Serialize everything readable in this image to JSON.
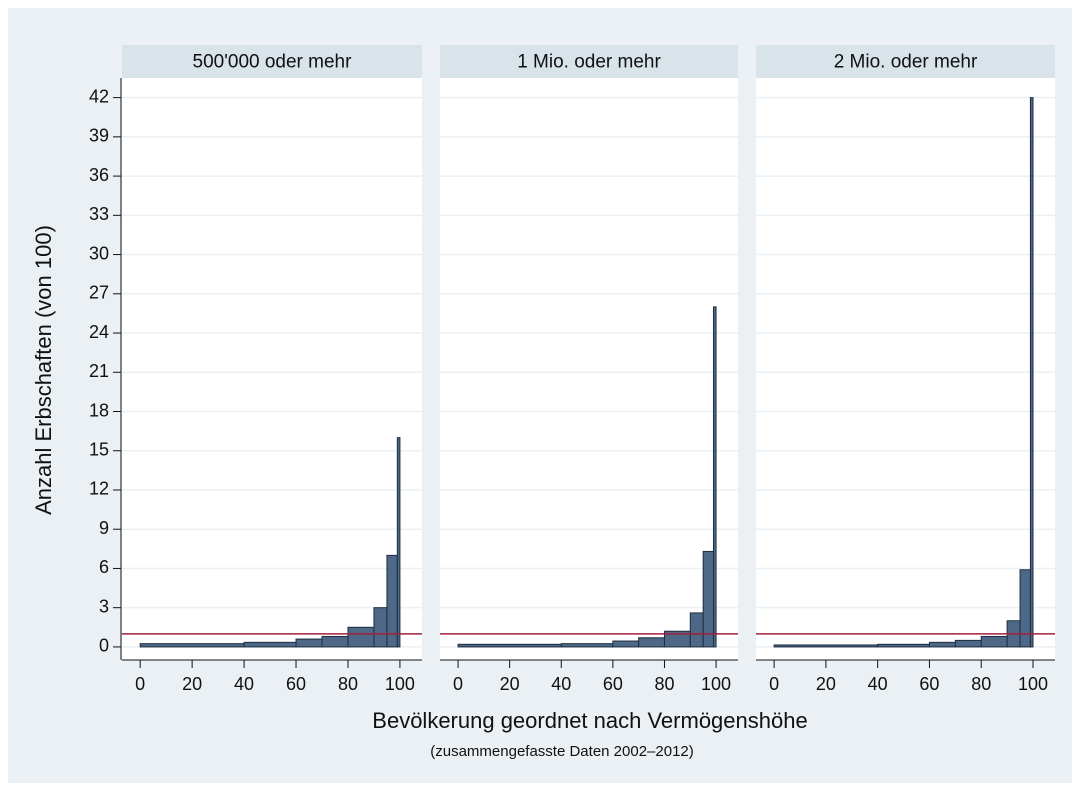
{
  "chart_data": [
    {
      "type": "histogram",
      "title": "500'000 oder mehr",
      "bins": [
        0,
        40,
        60,
        70,
        80,
        90,
        95,
        99,
        100
      ],
      "values": [
        0.25,
        0.35,
        0.6,
        0.8,
        1.5,
        3,
        7,
        16
      ],
      "color": "#4d6987",
      "edge_color": "#1e2d3d",
      "xlim": [
        -7,
        108.5
      ],
      "xticks": [
        0,
        20,
        40,
        60,
        80,
        100
      ],
      "ylim": [
        -1,
        43.5
      ],
      "yticks": [
        0,
        3,
        6,
        9,
        12,
        15,
        18,
        21,
        24,
        27,
        30,
        33,
        36,
        39,
        42
      ],
      "grid": true,
      "hline": 1,
      "hline_color": "#a3203e"
    },
    {
      "type": "histogram",
      "title": "1 Mio. oder mehr",
      "bins": [
        0,
        40,
        60,
        70,
        80,
        90,
        95,
        99,
        100
      ],
      "values": [
        0.2,
        0.25,
        0.45,
        0.7,
        1.2,
        2.6,
        7.3,
        26
      ],
      "color": "#4d6987",
      "edge_color": "#1e2d3d",
      "xlim": [
        -7,
        108.5
      ],
      "xticks": [
        0,
        20,
        40,
        60,
        80,
        100
      ],
      "ylim": [
        -1,
        43.5
      ],
      "yticks": [
        0,
        3,
        6,
        9,
        12,
        15,
        18,
        21,
        24,
        27,
        30,
        33,
        36,
        39,
        42
      ],
      "grid": true,
      "hline": 1,
      "hline_color": "#a3203e"
    },
    {
      "type": "histogram",
      "title": "2 Mio. oder mehr",
      "bins": [
        0,
        40,
        60,
        70,
        80,
        90,
        95,
        99,
        100
      ],
      "values": [
        0.15,
        0.2,
        0.35,
        0.5,
        0.8,
        2,
        5.9,
        42
      ],
      "color": "#4d6987",
      "edge_color": "#1e2d3d",
      "xlim": [
        -7,
        108.5
      ],
      "xticks": [
        0,
        20,
        40,
        60,
        80,
        100
      ],
      "ylim": [
        -1,
        43.5
      ],
      "yticks": [
        0,
        3,
        6,
        9,
        12,
        15,
        18,
        21,
        24,
        27,
        30,
        33,
        36,
        39,
        42
      ],
      "grid": true,
      "hline": 1,
      "hline_color": "#a3203e"
    }
  ],
  "y_label": "Anzahl Erbschaften (von 100)",
  "x_label": "Bevölkerung geordnet nach Vermögenshöhe",
  "note": "(zusammengefasste Daten 2002–2012)"
}
